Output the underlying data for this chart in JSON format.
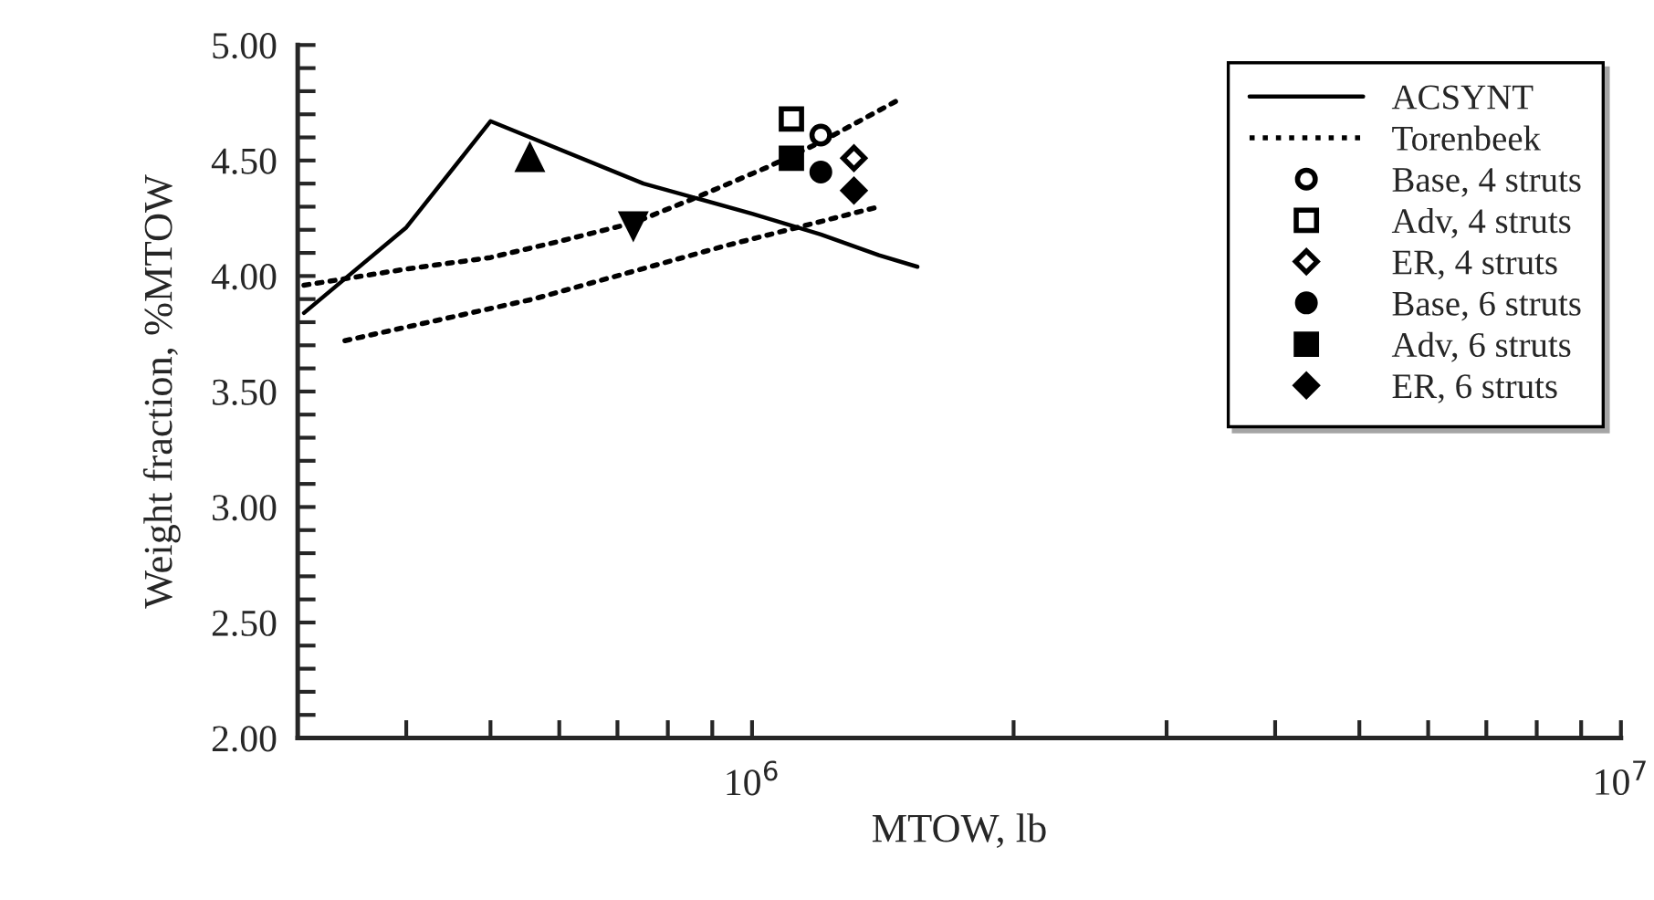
{
  "chart_data": {
    "type": "line",
    "xlabel": "MTOW, lb",
    "ylabel": "Weight fraction, %MTOW",
    "log": "x",
    "xlim": [
      300000,
      10000000
    ],
    "xticks": [
      {
        "value": 400000,
        "label": null
      },
      {
        "value": 500000,
        "label": null
      },
      {
        "value": 600000,
        "label": null
      },
      {
        "value": 700000,
        "label": null
      },
      {
        "value": 800000,
        "label": null
      },
      {
        "value": 900000,
        "label": null
      },
      {
        "value": 1000000,
        "label": "10$^{6}$"
      },
      {
        "value": 2000000,
        "label": null
      },
      {
        "value": 3000000,
        "label": null
      },
      {
        "value": 4000000,
        "label": null
      },
      {
        "value": 5000000,
        "label": null
      },
      {
        "value": 6000000,
        "label": null
      },
      {
        "value": 7000000,
        "label": null
      },
      {
        "value": 8000000,
        "label": null
      },
      {
        "value": 9000000,
        "label": null
      },
      {
        "value": 10000000,
        "label": "10$^{7}$"
      }
    ],
    "ylim": [
      2.0,
      5.0
    ],
    "yticks": [
      {
        "value": 2.0,
        "label": "2.00"
      },
      {
        "value": 2.1,
        "label": null
      },
      {
        "value": 2.2,
        "label": null
      },
      {
        "value": 2.3,
        "label": null
      },
      {
        "value": 2.4,
        "label": null
      },
      {
        "value": 2.5,
        "label": "2.50"
      },
      {
        "value": 2.6,
        "label": null
      },
      {
        "value": 2.7,
        "label": null
      },
      {
        "value": 2.8,
        "label": null
      },
      {
        "value": 2.9,
        "label": null
      },
      {
        "value": 3.0,
        "label": "3.00"
      },
      {
        "value": 3.1,
        "label": null
      },
      {
        "value": 3.2,
        "label": null
      },
      {
        "value": 3.3,
        "label": null
      },
      {
        "value": 3.4,
        "label": null
      },
      {
        "value": 3.5,
        "label": "3.50"
      },
      {
        "value": 3.6,
        "label": null
      },
      {
        "value": 3.7,
        "label": null
      },
      {
        "value": 3.8,
        "label": null
      },
      {
        "value": 3.9,
        "label": null
      },
      {
        "value": 4.0,
        "label": "4.00"
      },
      {
        "value": 4.1,
        "label": null
      },
      {
        "value": 4.2,
        "label": null
      },
      {
        "value": 4.3,
        "label": null
      },
      {
        "value": 4.4,
        "label": null
      },
      {
        "value": 4.5,
        "label": "4.50"
      },
      {
        "value": 4.6,
        "label": null
      },
      {
        "value": 4.7,
        "label": null
      },
      {
        "value": 4.8,
        "label": null
      },
      {
        "value": 4.9,
        "label": null
      },
      {
        "value": 5.0,
        "label": "5.00"
      }
    ],
    "grid": false,
    "legend": "top right",
    "series": [
      {
        "name": "ACSYNT",
        "line_style": "solid",
        "color": "#000000",
        "x": [
          305000,
          400000,
          500000,
          750000,
          1000000,
          1200000,
          1400000,
          1550000
        ],
        "values": [
          3.84,
          4.21,
          4.67,
          4.4,
          4.27,
          4.18,
          4.09,
          4.04
        ]
      },
      {
        "line_style": "dotted",
        "color": "#000000",
        "x": [
          340000,
          560000,
          930000,
          1400000
        ],
        "values": [
          3.72,
          3.9,
          4.13,
          4.3
        ]
      },
      {
        "name": "Torenbeek",
        "line_style": "dotted",
        "color": "#000000",
        "x": [
          305000,
          400000,
          500000,
          600000,
          730000,
          850000,
          1040000,
          1200000,
          1470000
        ],
        "values": [
          3.96,
          4.03,
          4.08,
          4.15,
          4.23,
          4.33,
          4.47,
          4.58,
          4.76
        ]
      },
      {
        "type": "scatter",
        "marker": "triangle",
        "color": "#000000",
        "x": [
          555000
        ],
        "values": [
          4.51
        ]
      },
      {
        "type": "scatter",
        "marker": "triangle_down",
        "color": "#000000",
        "x": [
          730000
        ],
        "values": [
          4.22
        ]
      },
      {
        "name": "Base, 4 struts",
        "type": "scatter",
        "marker": "circle_open",
        "color": "#000000",
        "x": [
          1200000
        ],
        "values": [
          4.61
        ]
      },
      {
        "name": "Adv, 4 struts",
        "type": "scatter",
        "marker": "square_open",
        "color": "#000000",
        "x": [
          1110000
        ],
        "values": [
          4.68
        ]
      },
      {
        "name": "ER, 4 struts",
        "type": "scatter",
        "marker": "diamond_open",
        "color": "#000000",
        "x": [
          1310000
        ],
        "values": [
          4.51
        ]
      },
      {
        "name": "Base, 6 struts",
        "type": "scatter",
        "marker": "circle",
        "color": "#000000",
        "x": [
          1200000
        ],
        "values": [
          4.45
        ]
      },
      {
        "name": "Adv, 6 struts",
        "type": "scatter",
        "marker": "square",
        "color": "#000000",
        "x": [
          1110000
        ],
        "values": [
          4.51
        ]
      },
      {
        "name": "ER, 6 struts",
        "type": "scatter",
        "marker": "diamond",
        "color": "#000000",
        "x": [
          1310000
        ],
        "values": [
          4.37
        ]
      }
    ]
  }
}
